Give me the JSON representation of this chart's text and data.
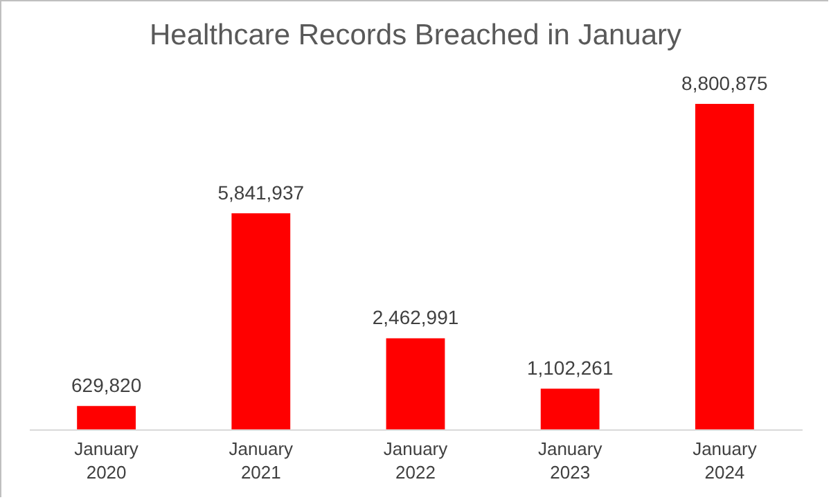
{
  "chart_data": {
    "type": "bar",
    "title": "Healthcare Records Breached in January",
    "categories": [
      "January 2020",
      "January 2021",
      "January 2022",
      "January 2023",
      "January 2024"
    ],
    "values": [
      629820,
      5841937,
      2462991,
      1102261,
      8800875
    ],
    "value_labels": [
      "629,820",
      "5,841,937",
      "2,462,991",
      "1,102,261",
      "8,800,875"
    ],
    "color": "#ff0000",
    "tick_labels": "x"
  }
}
